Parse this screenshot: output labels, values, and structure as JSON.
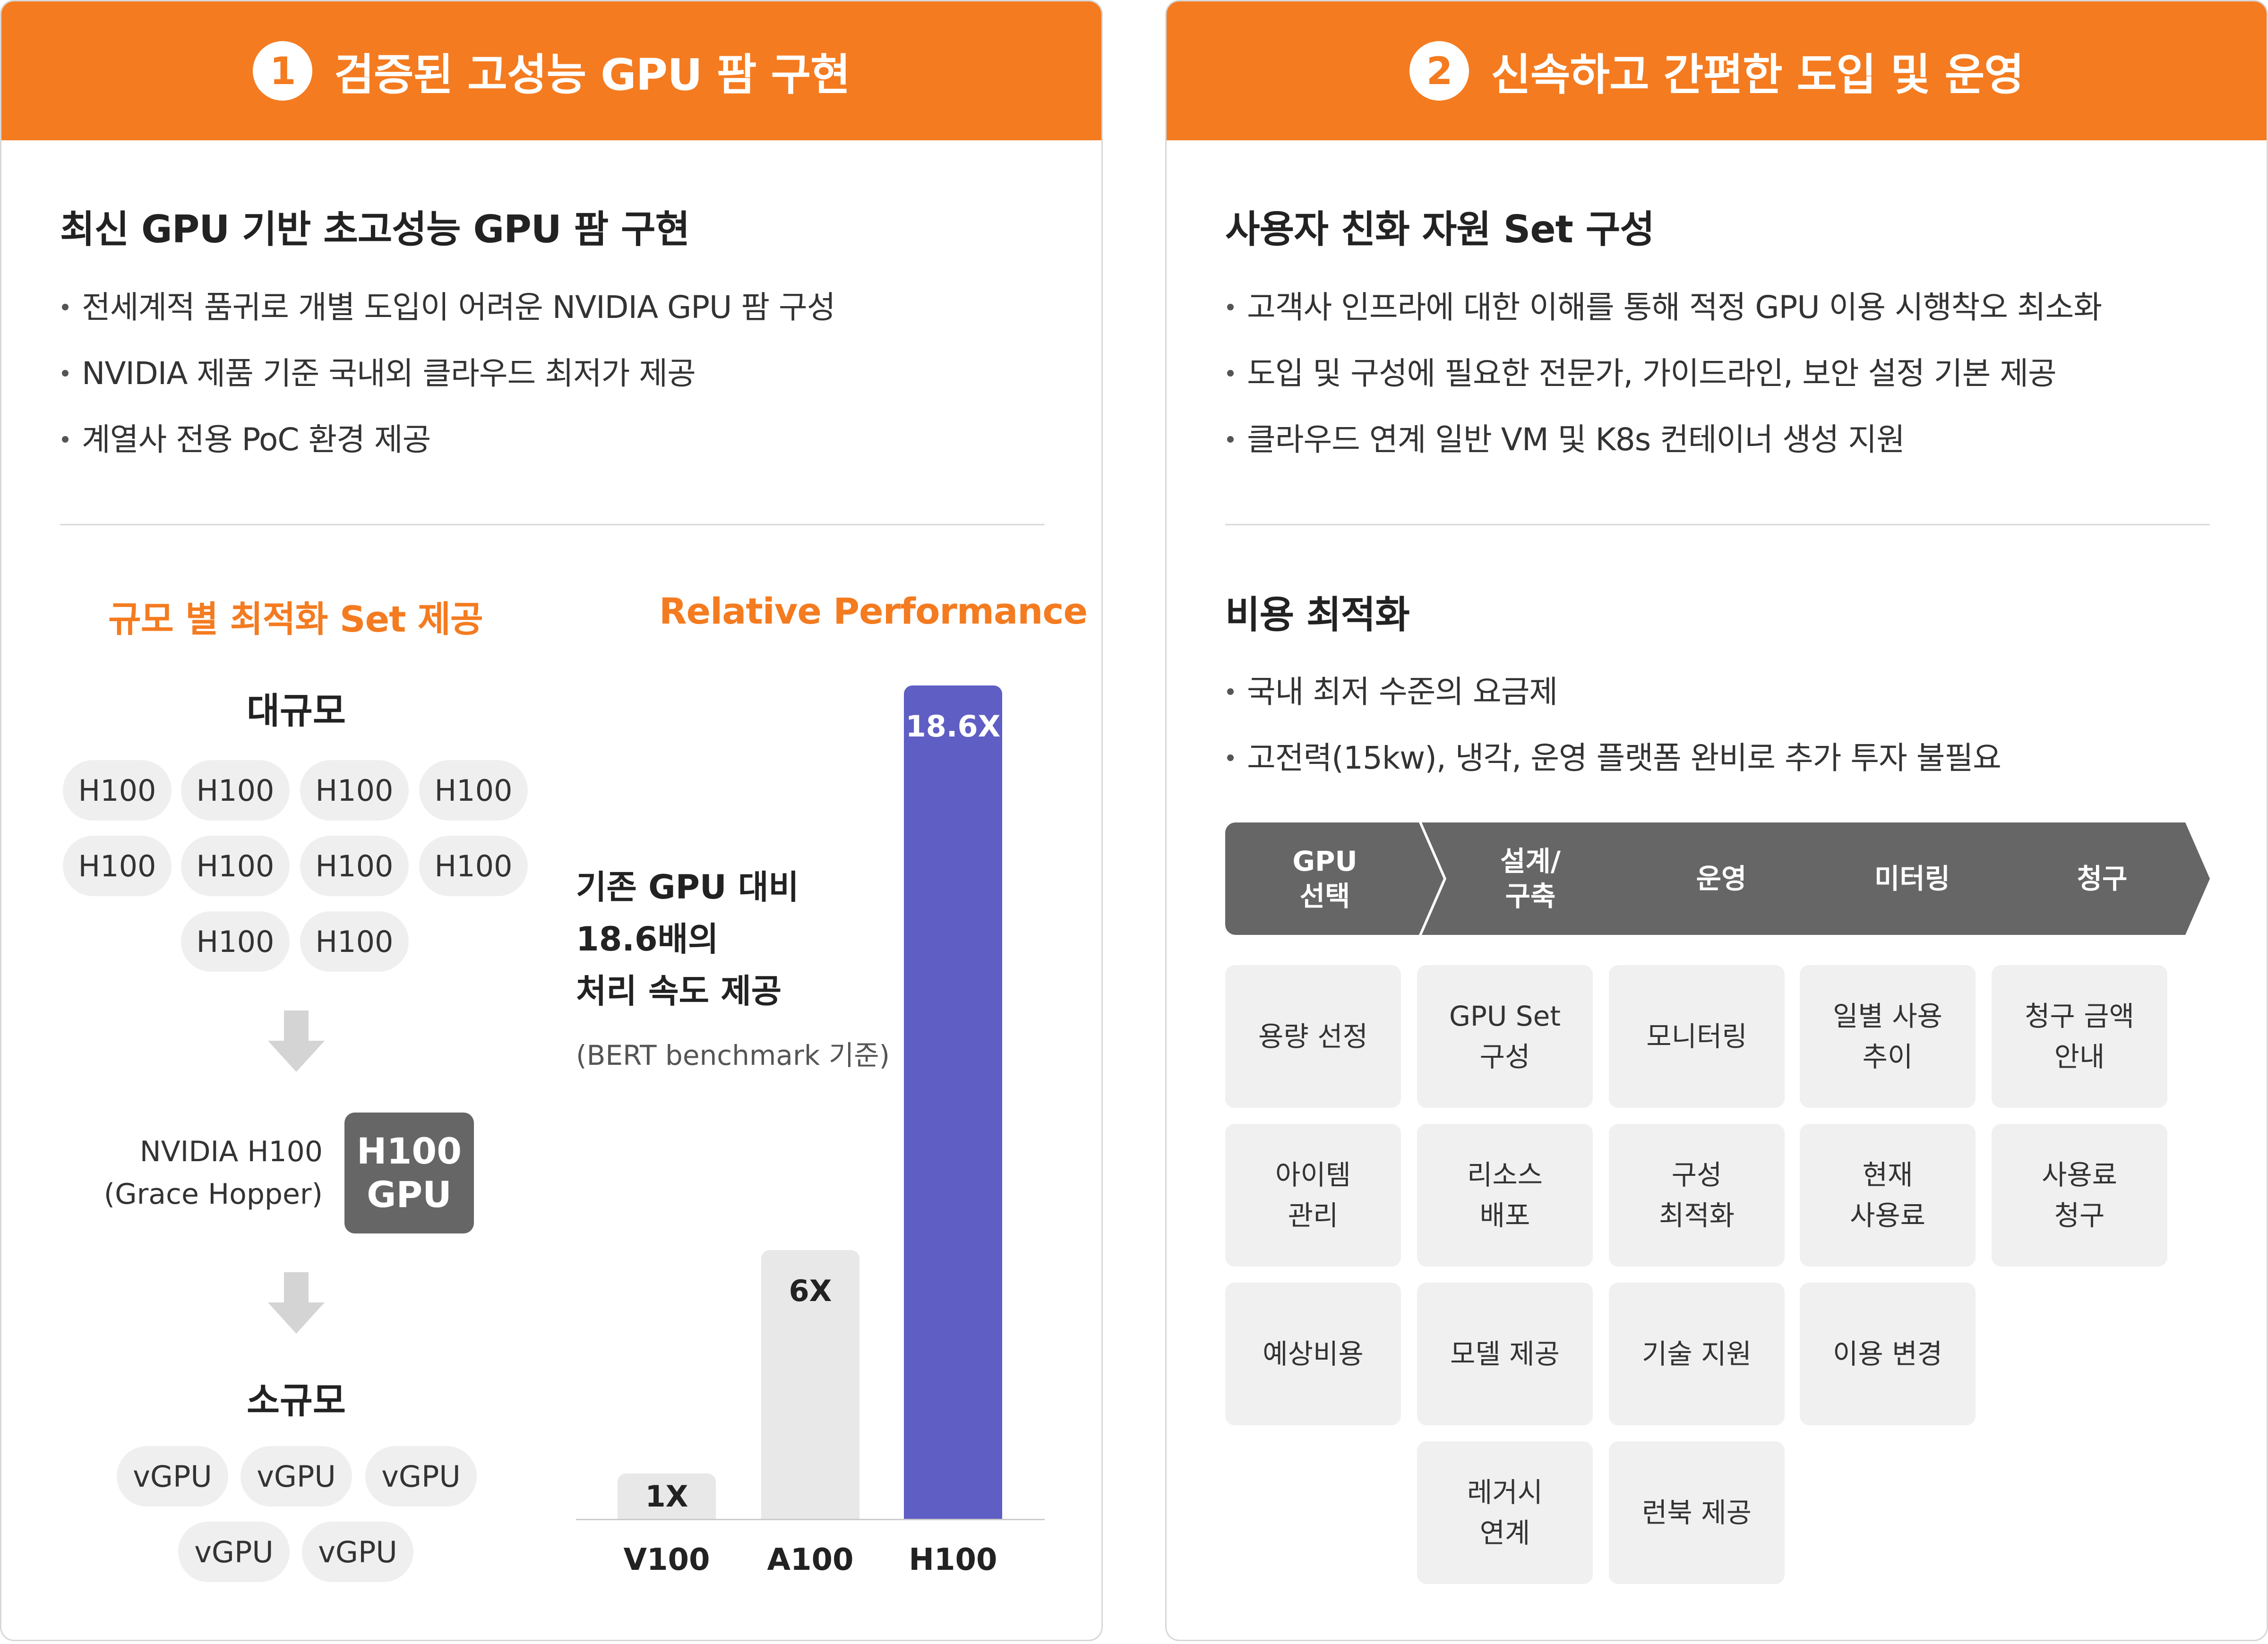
{
  "left": {
    "header": {
      "number": "1",
      "title": "검증된 고성능 GPU 팜 구현"
    },
    "section_title": "최신 GPU 기반 초고성능 GPU 팜 구현",
    "bullets": [
      "전세계적 품귀로 개별 도입이 어려운 NVIDIA GPU 팜 구성",
      "NVIDIA 제품 기준 국내외 클라우드 최저가 제공",
      "계열사 전용 PoC 환경 제공"
    ],
    "scale": {
      "subtitle": "규모 별 최적화 Set 제공",
      "large_label": "대규모",
      "large_items": [
        "H100",
        "H100",
        "H100",
        "H100",
        "H100",
        "H100",
        "H100",
        "H100",
        "H100",
        "H100"
      ],
      "chip_label_line1": "NVIDIA H100",
      "chip_label_line2": "(Grace Hopper)",
      "chip_line1": "H100",
      "chip_line2": "GPU",
      "small_label": "소규모",
      "small_items": [
        "vGPU",
        "vGPU",
        "vGPU",
        "vGPU",
        "vGPU"
      ]
    },
    "perf": {
      "subtitle": "Relative Performance",
      "text_line1": "기존 GPU 대비",
      "text_line2": "18.6배의",
      "text_line3": "처리 속도 제공",
      "note": "(BERT benchmark 기준)"
    }
  },
  "chart_data": {
    "type": "bar",
    "title": "Relative Performance",
    "categories": [
      "V100",
      "A100",
      "H100"
    ],
    "values": [
      1,
      6,
      18.6
    ],
    "labels": [
      "1X",
      "6X",
      "18.6X"
    ],
    "colors": [
      "#e8e8e8",
      "#e8e8e8",
      "#5f5ec4"
    ],
    "ylim": [
      0,
      18.6
    ],
    "grid": false
  },
  "right": {
    "header": {
      "number": "2",
      "title": "신속하고 간편한 도입 및 운영"
    },
    "section1_title": "사용자 친화 자원 Set 구성",
    "bullets1": [
      "고객사 인프라에 대한 이해를 통해 적정 GPU 이용 시행착오 최소화",
      "도입 및 구성에 필요한 전문가, 가이드라인, 보안 설정 기본 제공",
      "클라우드 연계 일반 VM 및 K8s 컨테이너 생성 지원"
    ],
    "section2_title": "비용 최적화",
    "bullets2": [
      "국내 최저 수준의 요금제",
      "고전력(15kw), 냉각, 운영 플랫폼 완비로 추가 투자 불필요"
    ],
    "process": [
      "GPU\n선택",
      "설계/\n구축",
      "운영",
      "미터링",
      "청구"
    ],
    "tiles": [
      [
        "용량 선정",
        "아이템\n관리",
        "예상비용"
      ],
      [
        "GPU Set\n구성",
        "리소스\n배포",
        "모델 제공",
        "레거시\n연계"
      ],
      [
        "모니터링",
        "구성\n최적화",
        "기술 지원",
        "런북 제공"
      ],
      [
        "일별 사용\n추이",
        "현재\n사용료",
        "이용 변경"
      ],
      [
        "청구 금액\n안내",
        "사용료\n청구"
      ]
    ]
  }
}
